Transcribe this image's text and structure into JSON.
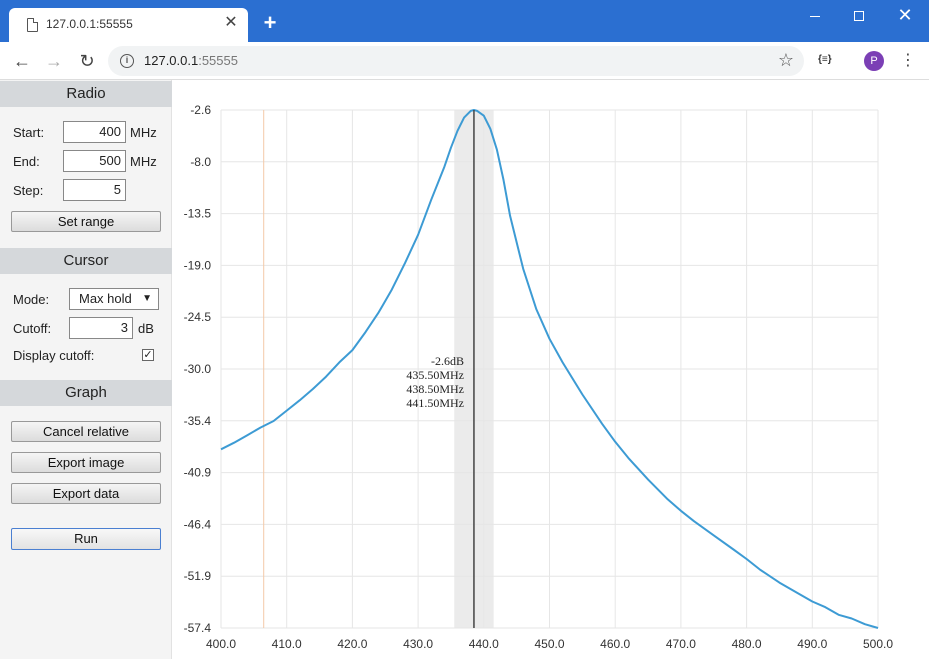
{
  "browser": {
    "tab_title": "127.0.0.1:55555",
    "url_host": "127.0.0.1",
    "url_port": ":55555",
    "profile_initial": "P",
    "extension_label": "{≡}"
  },
  "sidebar": {
    "radio": {
      "heading": "Radio",
      "start_label": "Start:",
      "start_value": "400",
      "start_unit": "MHz",
      "end_label": "End:",
      "end_value": "500",
      "end_unit": "MHz",
      "step_label": "Step:",
      "step_value": "5",
      "set_range_label": "Set range"
    },
    "cursor": {
      "heading": "Cursor",
      "mode_label": "Mode:",
      "mode_value": "Max hold",
      "cutoff_label": "Cutoff:",
      "cutoff_value": "3",
      "cutoff_unit": "dB",
      "display_cutoff_label": "Display cutoff:",
      "display_cutoff_checked": true
    },
    "graph": {
      "heading": "Graph",
      "cancel_relative_label": "Cancel relative",
      "export_image_label": "Export image",
      "export_data_label": "Export data",
      "run_label": "Run"
    }
  },
  "chart_data": {
    "type": "line",
    "xlim": [
      400,
      500
    ],
    "ylim": [
      -57.4,
      -2.6
    ],
    "x_ticks": [
      "400.0",
      "410.0",
      "420.0",
      "430.0",
      "440.0",
      "450.0",
      "460.0",
      "470.0",
      "480.0",
      "490.0",
      "500.0"
    ],
    "y_ticks": [
      "-2.6",
      "-8.0",
      "-13.5",
      "-19.0",
      "-24.5",
      "-30.0",
      "-35.4",
      "-40.9",
      "-46.4",
      "-51.9",
      "-57.4"
    ],
    "grid": true,
    "line_color": "#3d9bd4",
    "series": [
      {
        "x": [
          400,
          402,
          404,
          406,
          408,
          410,
          412,
          414,
          416,
          418,
          420,
          422,
          424,
          426,
          428,
          430,
          432,
          434,
          435,
          436,
          437,
          438,
          438.5,
          439,
          440,
          441,
          442,
          443,
          444,
          446,
          448,
          450,
          452,
          455,
          458,
          460,
          462,
          465,
          468,
          470,
          472,
          475,
          478,
          480,
          482,
          485,
          488,
          490,
          492,
          494,
          496,
          498,
          500
        ],
        "y": [
          -38.5,
          -37.8,
          -37.0,
          -36.2,
          -35.5,
          -34.4,
          -33.3,
          -32.1,
          -30.8,
          -29.3,
          -28.0,
          -26.1,
          -24.0,
          -21.6,
          -18.8,
          -15.8,
          -12.1,
          -8.6,
          -6.6,
          -4.8,
          -3.4,
          -2.7,
          -2.6,
          -2.7,
          -3.2,
          -4.6,
          -6.8,
          -10.0,
          -13.8,
          -19.4,
          -23.7,
          -26.8,
          -29.3,
          -32.7,
          -35.8,
          -37.7,
          -39.4,
          -41.7,
          -43.8,
          -45.0,
          -46.1,
          -47.6,
          -49.1,
          -50.1,
          -51.2,
          -52.6,
          -53.8,
          -54.6,
          -55.2,
          -56.0,
          -56.4,
          -57.0,
          -57.4
        ]
      }
    ],
    "cutoff_marker_x": 406.5,
    "cursor": {
      "x": 438.5,
      "band": [
        435.5,
        441.5
      ],
      "labels": [
        "-2.6dB",
        "435.50MHz",
        "438.50MHz",
        "441.50MHz"
      ]
    }
  }
}
